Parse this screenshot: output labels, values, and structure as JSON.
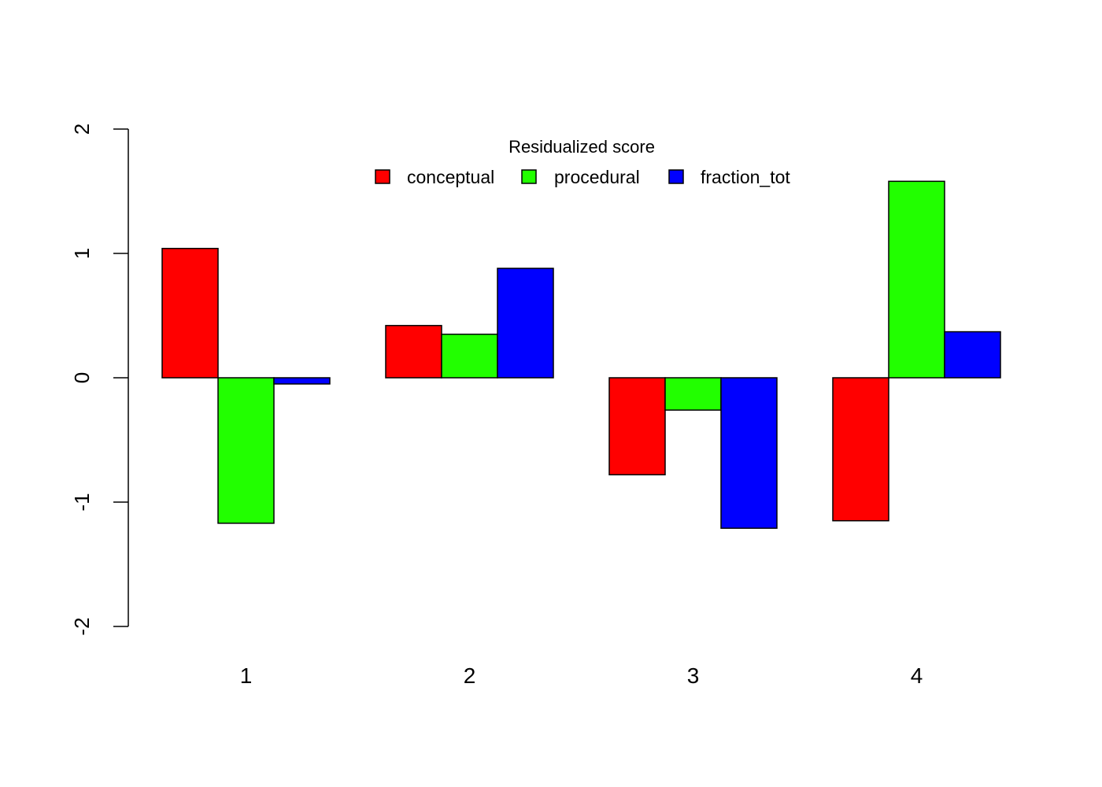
{
  "chart_data": {
    "type": "bar",
    "mode": "grouped",
    "categories": [
      "1",
      "2",
      "3",
      "4"
    ],
    "series": [
      {
        "name": "conceptual",
        "color": "#FF0000",
        "values": [
          1.04,
          0.42,
          -0.78,
          -1.15
        ]
      },
      {
        "name": "procedural",
        "color": "#22FF00",
        "values": [
          -1.17,
          0.35,
          -0.26,
          1.58
        ]
      },
      {
        "name": "fraction_tot",
        "color": "#0000FF",
        "values": [
          -0.05,
          0.88,
          -1.21,
          0.37
        ]
      }
    ],
    "ylim": [
      -2,
      2
    ],
    "yticks": [
      "-2",
      "-1",
      "0",
      "1",
      "2"
    ],
    "legend": {
      "title": "Residualized score",
      "position": "top-center",
      "layout": "horizontal"
    },
    "title": "",
    "xlabel": "",
    "ylabel": "",
    "grid": false
  }
}
